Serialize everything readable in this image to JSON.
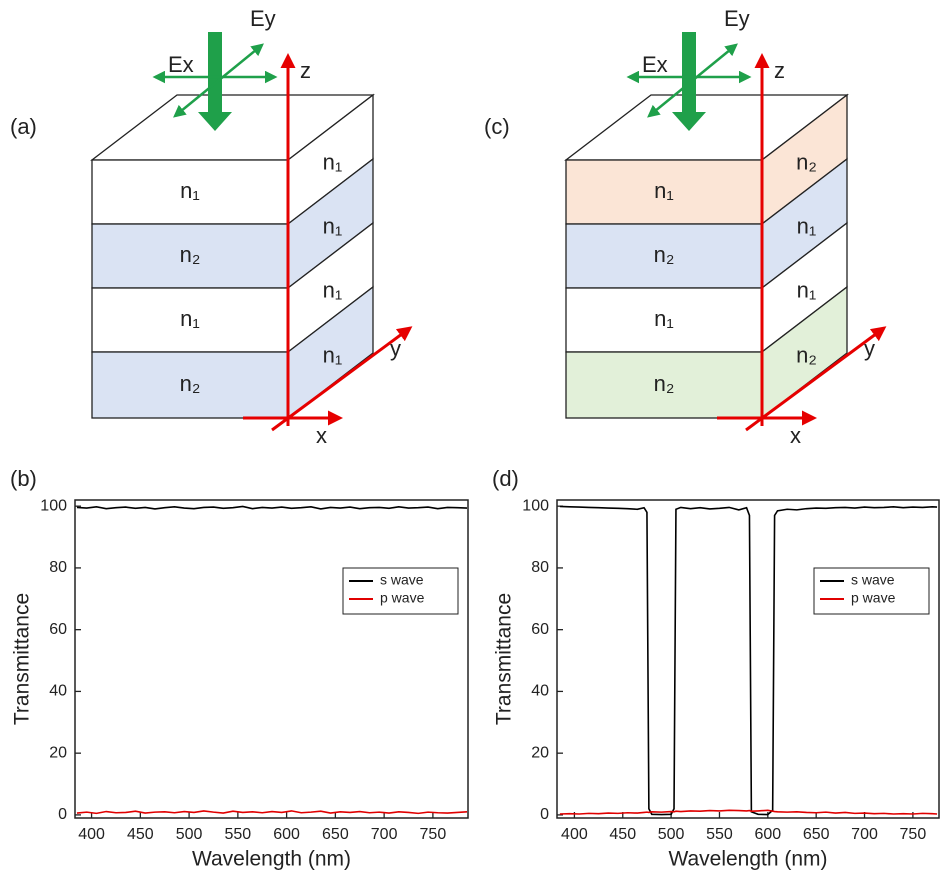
{
  "diagrams": [
    {
      "panel_label": "(a)",
      "ex": "Ex",
      "ey": "Ey",
      "z": "z",
      "y": "y",
      "x": "x",
      "front_labels": [
        "n₁",
        "n₂",
        "n₁",
        "n₂"
      ],
      "side_labels": [
        "n₁",
        "n₁",
        "n₁",
        "n₁"
      ]
    },
    {
      "panel_label": "(c)",
      "ex": "Ex",
      "ey": "Ey",
      "z": "z",
      "y": "y",
      "x": "x",
      "front_labels": [
        "n₁",
        "n₂",
        "n₁",
        "n₂"
      ],
      "side_labels": [
        "n₂",
        "n₁",
        "n₁",
        "n₂"
      ]
    }
  ],
  "chart_data": [
    {
      "type": "line",
      "panel_label": "(b)",
      "x_label": "Wavelength (nm)",
      "y_label": "Transmittance",
      "xlim": [
        383,
        786
      ],
      "ylim": [
        -1,
        102
      ],
      "xticks": [
        400,
        450,
        500,
        550,
        600,
        650,
        700,
        750
      ],
      "yticks": [
        0,
        20,
        40,
        60,
        80,
        100
      ],
      "legend": "right",
      "x": [
        385,
        395,
        405,
        415,
        425,
        435,
        445,
        455,
        465,
        475,
        485,
        495,
        505,
        515,
        525,
        535,
        545,
        555,
        565,
        575,
        585,
        595,
        605,
        615,
        625,
        635,
        645,
        655,
        665,
        675,
        685,
        695,
        705,
        715,
        725,
        735,
        745,
        755,
        765,
        775,
        785
      ],
      "series": [
        {
          "name": "s wave",
          "color": "#000000",
          "values": [
            99.6,
            99.4,
            99.8,
            99.2,
            99.5,
            99.7,
            99.3,
            99.6,
            99.1,
            99.5,
            99.8,
            99.4,
            99.2,
            99.6,
            99.7,
            99.3,
            99.5,
            99.9,
            99.2,
            99.6,
            99.4,
            99.7,
            99.3,
            99.5,
            99.8,
            99.1,
            99.6,
            99.4,
            99.7,
            99.2,
            99.5,
            99.6,
            99.3,
            99.8,
            99.4,
            99.5,
            99.7,
            99.2,
            99.6,
            99.5,
            99.4
          ]
        },
        {
          "name": "p wave",
          "color": "#e00000",
          "values": [
            0.6,
            0.9,
            0.5,
            1.1,
            0.7,
            0.8,
            1.2,
            0.6,
            0.9,
            1.0,
            0.7,
            1.1,
            0.8,
            1.3,
            0.9,
            0.6,
            1.2,
            0.8,
            1.0,
            0.7,
            1.1,
            0.8,
            1.3,
            0.7,
            0.9,
            1.2,
            0.6,
            1.0,
            0.8,
            1.1,
            0.7,
            0.9,
            0.6,
            1.0,
            0.8,
            0.5,
            0.9,
            0.7,
            0.6,
            0.8,
            1.0
          ]
        }
      ]
    },
    {
      "type": "line",
      "panel_label": "(d)",
      "x_label": "Wavelength (nm)",
      "y_label": "Transmittance",
      "xlim": [
        382,
        777
      ],
      "ylim": [
        -1,
        102
      ],
      "xticks": [
        400,
        450,
        500,
        550,
        600,
        650,
        700,
        750
      ],
      "yticks": [
        0,
        20,
        40,
        60,
        80,
        100
      ],
      "legend": "right",
      "x": [
        385,
        395,
        405,
        415,
        425,
        435,
        445,
        455,
        465,
        472,
        475,
        477,
        480,
        490,
        500,
        503,
        505,
        510,
        520,
        530,
        540,
        550,
        560,
        570,
        578,
        581,
        583,
        590,
        600,
        605,
        607,
        610,
        620,
        630,
        640,
        650,
        660,
        670,
        680,
        690,
        700,
        710,
        720,
        730,
        740,
        750,
        760,
        770,
        775
      ],
      "series": [
        {
          "name": "s wave",
          "color": "#000000",
          "values": [
            99.9,
            99.8,
            99.7,
            99.6,
            99.5,
            99.4,
            99.3,
            99.2,
            99.0,
            99.5,
            98,
            2,
            0.2,
            0.1,
            0.2,
            2,
            99,
            99.6,
            99.2,
            99.5,
            99.1,
            99.3,
            99.6,
            98.8,
            99.5,
            97,
            1,
            0.2,
            0.1,
            1.5,
            97,
            98.5,
            99.0,
            98.8,
            99.2,
            99.4,
            99.3,
            99.5,
            99.6,
            99.4,
            99.7,
            99.5,
            99.6,
            99.8,
            99.5,
            99.7,
            99.6,
            99.8,
            99.7
          ]
        },
        {
          "name": "p wave",
          "color": "#e00000",
          "values": [
            0.3,
            0.4,
            0.3,
            0.5,
            0.4,
            0.6,
            0.5,
            0.7,
            0.6,
            0.8,
            0.9,
            0.8,
            1.0,
            0.9,
            1.1,
            1.0,
            1.2,
            1.1,
            1.3,
            1.2,
            1.4,
            1.3,
            1.5,
            1.4,
            1.3,
            1.4,
            1.2,
            1.3,
            1.5,
            1.2,
            1.1,
            1.0,
            0.9,
            1.0,
            0.8,
            0.7,
            0.9,
            0.6,
            0.8,
            0.5,
            0.6,
            0.4,
            0.5,
            0.3,
            0.4,
            0.3,
            0.5,
            0.4,
            0.3
          ]
        }
      ]
    }
  ]
}
